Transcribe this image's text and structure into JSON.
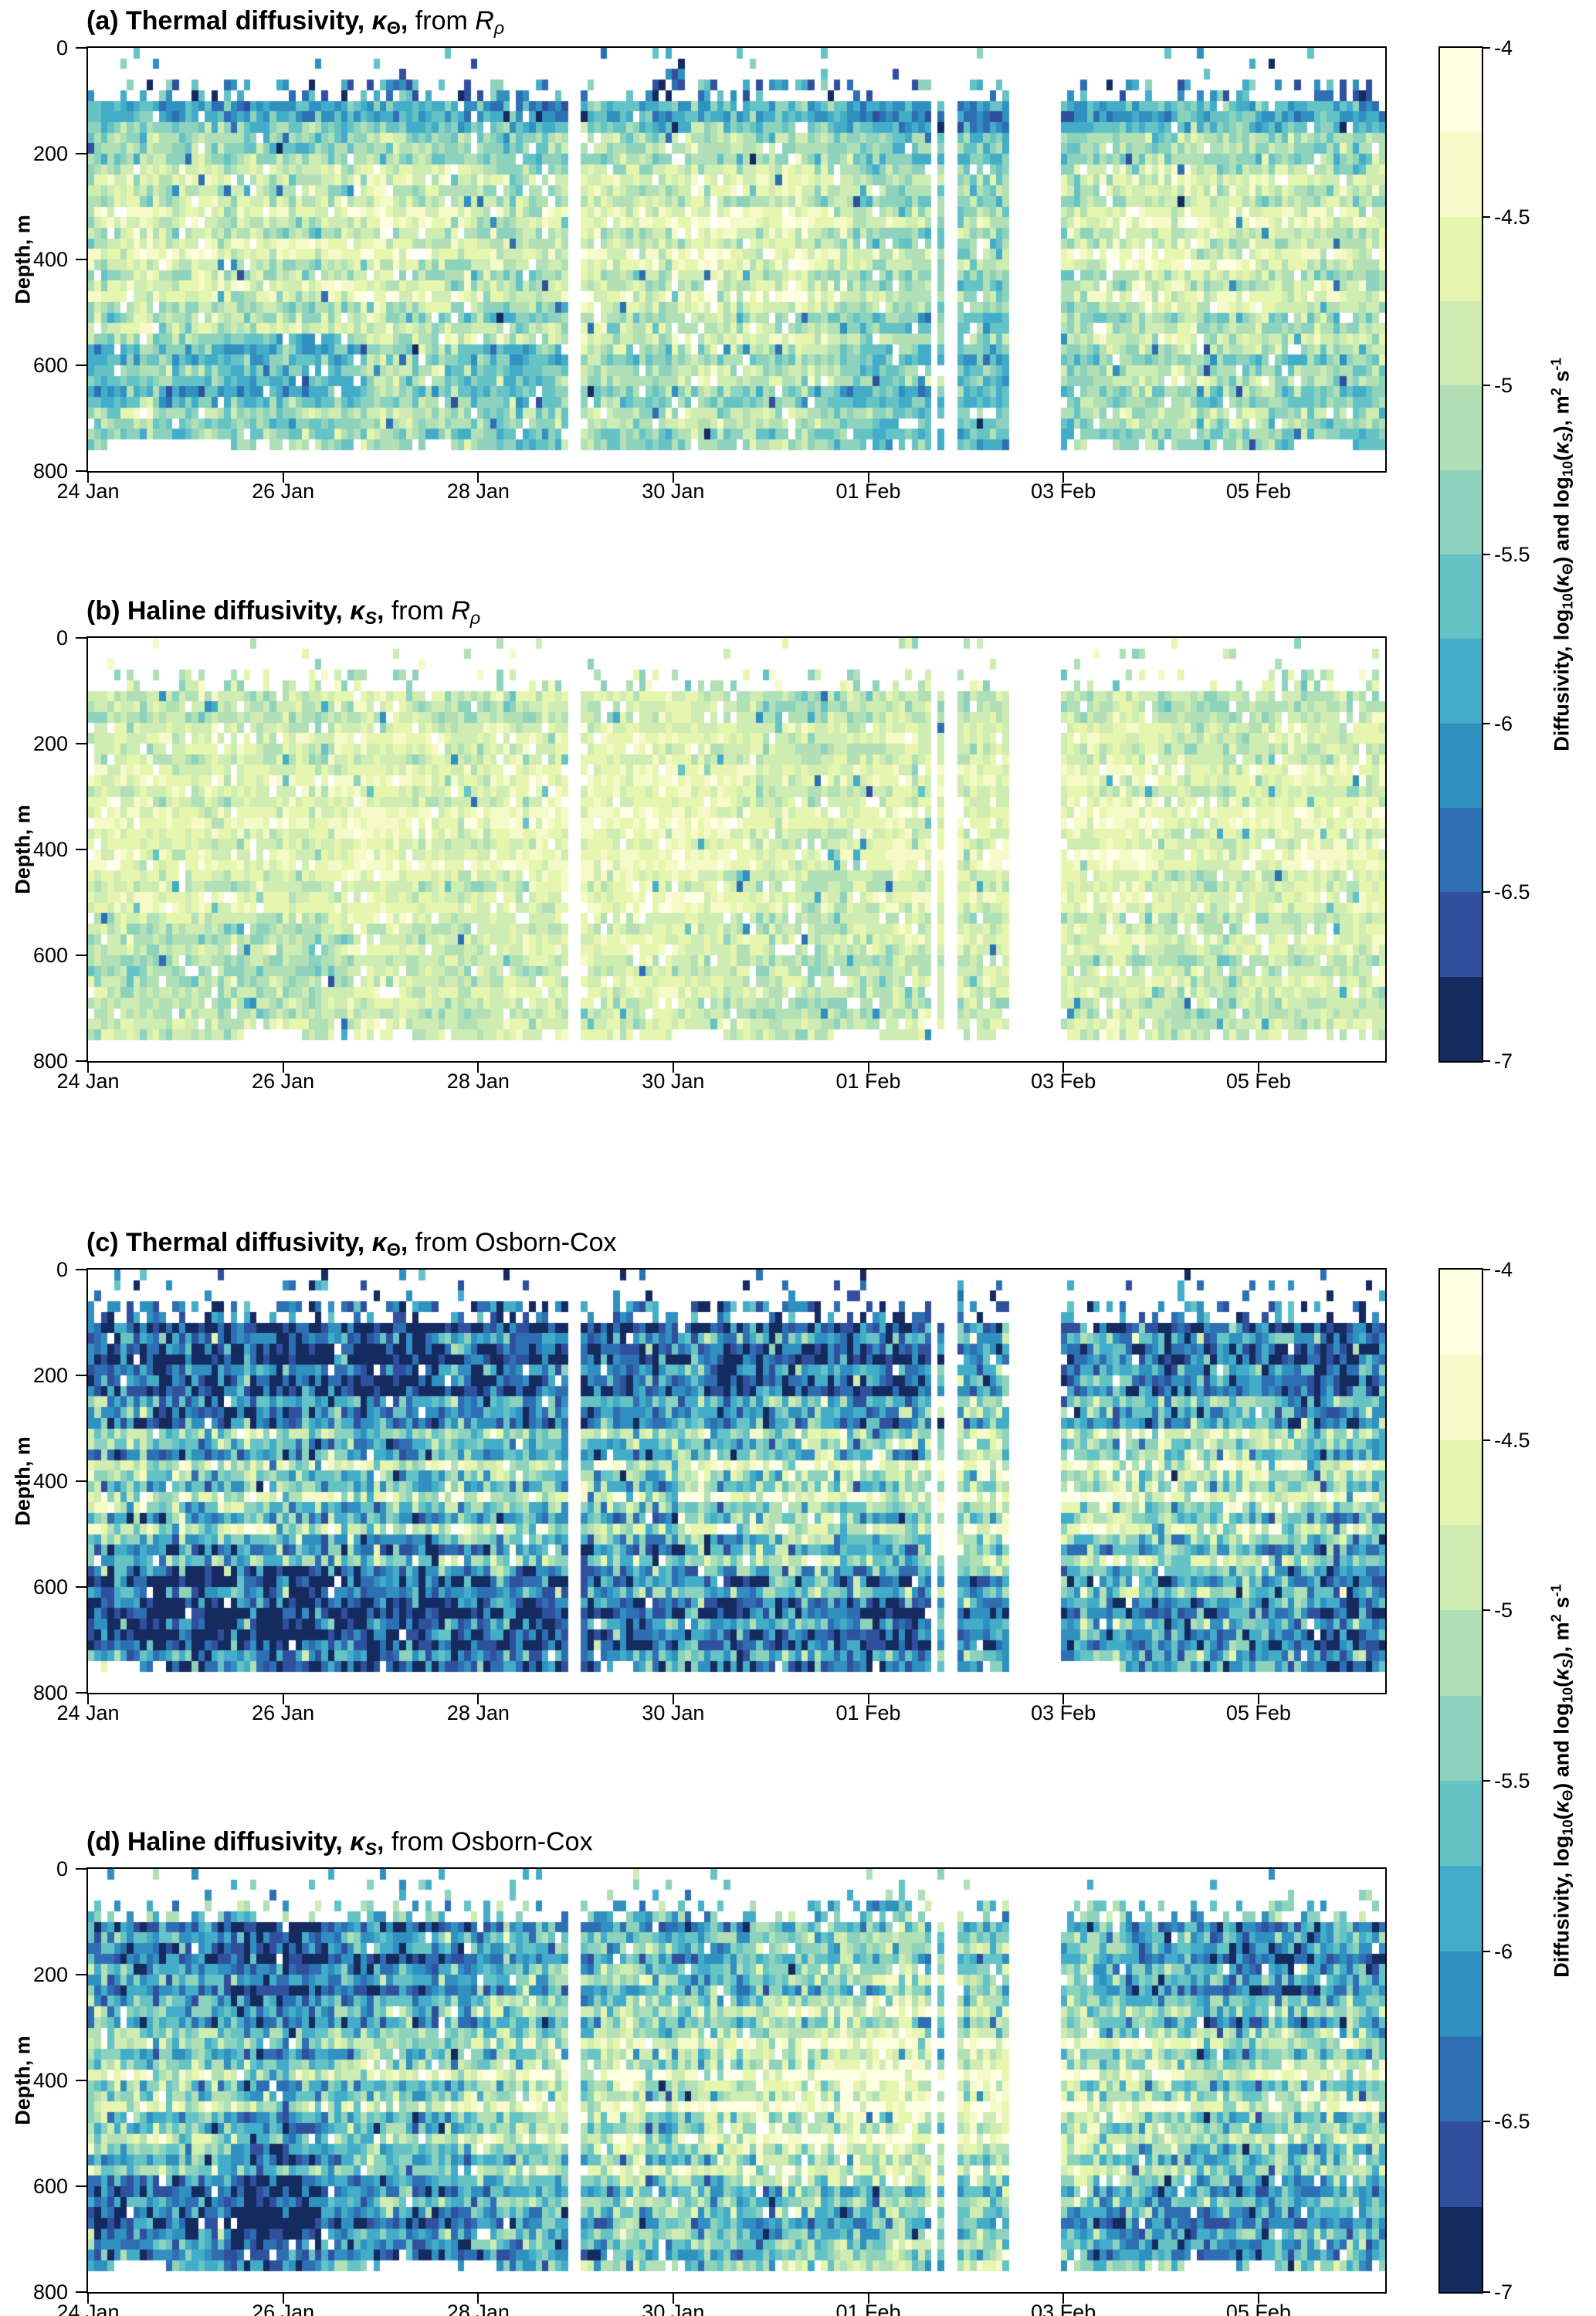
{
  "chart_data": {
    "type": "heatmap",
    "panel_layout": "4 stacked time-depth sections with shared discrete colorbar per pair",
    "x_axis": {
      "start_label": "24 Jan",
      "span_days": 13.3,
      "tick_step_days": 2,
      "ticks": [
        {
          "f": 0.0,
          "label": "24 Jan"
        },
        {
          "f": 0.1504,
          "label": "26 Jan"
        },
        {
          "f": 0.3008,
          "label": "28 Jan"
        },
        {
          "f": 0.4511,
          "label": "30 Jan"
        },
        {
          "f": 0.6015,
          "label": "01 Feb"
        },
        {
          "f": 0.7519,
          "label": "03 Feb"
        },
        {
          "f": 0.9023,
          "label": "05 Feb"
        }
      ]
    },
    "y_axis": {
      "label": "Depth, m",
      "min": 0,
      "max": 800,
      "ticks": [
        {
          "f": 0.0,
          "label": "0"
        },
        {
          "f": 0.25,
          "label": "200"
        },
        {
          "f": 0.5,
          "label": "400"
        },
        {
          "f": 0.75,
          "label": "600"
        },
        {
          "f": 1.0,
          "label": "800"
        }
      ]
    },
    "colorbar": {
      "vmin": -7,
      "vmax": -4,
      "band_step": 0.25,
      "colors": [
        "#ffffe4",
        "#f5fac8",
        "#e6f6ae",
        "#cfecb2",
        "#b1dfb6",
        "#8dd2bd",
        "#65c3c5",
        "#43adc9",
        "#3090c0",
        "#2e6fb3",
        "#30509e",
        "#152a5e"
      ],
      "ticks": [
        {
          "v": -4,
          "label": "-4"
        },
        {
          "v": -4.5,
          "label": "-4.5"
        },
        {
          "v": -5,
          "label": "-5"
        },
        {
          "v": -5.5,
          "label": "-5.5"
        },
        {
          "v": -6,
          "label": "-6"
        },
        {
          "v": -6.5,
          "label": "-6.5"
        },
        {
          "v": -7,
          "label": "-7"
        }
      ],
      "label_parts": [
        {
          "t": "Diffusivity,  log",
          "b": 1
        },
        {
          "t": "10",
          "b": 1,
          "sub": 1
        },
        {
          "t": "(",
          "b": 1
        },
        {
          "t": "κ",
          "b": 1,
          "i": 1
        },
        {
          "t": "Θ",
          "b": 1,
          "sub": 1
        },
        {
          "t": ")  and  log",
          "b": 1
        },
        {
          "t": "10",
          "b": 1,
          "sub": 1
        },
        {
          "t": "(",
          "b": 1
        },
        {
          "t": "κ",
          "b": 1,
          "i": 1
        },
        {
          "t": "S",
          "b": 1,
          "i": 1,
          "sub": 1
        },
        {
          "t": "),  m",
          "b": 1
        },
        {
          "t": "2",
          "b": 1,
          "sup": 1
        },
        {
          "t": " s",
          "b": 1
        },
        {
          "t": "-1",
          "b": 1,
          "sup": 1
        }
      ]
    },
    "missing_data_gaps_frac": [
      [
        0.37,
        0.379
      ],
      [
        0.65,
        0.657
      ],
      [
        0.662,
        0.669
      ],
      [
        0.708,
        0.7485
      ]
    ],
    "gen": {
      "cols": 200,
      "rows": 40,
      "depth_max": 800,
      "top1": 60,
      "top2": 100,
      "bottom_base": 752,
      "bottom_var": 14
    },
    "panels": [
      {
        "id": "a",
        "seed": 11,
        "title_parts": [
          {
            "t": "(a) Thermal diffusivity, ",
            "b": 1
          },
          {
            "t": "κ",
            "b": 1,
            "i": 1
          },
          {
            "t": "Θ",
            "b": 1,
            "sub": 1
          },
          {
            "t": ", ",
            "b": 1
          },
          {
            "t": "from "
          },
          {
            "t": "R",
            "i": 1
          },
          {
            "t": "ρ",
            "i": 1,
            "sub": 1
          }
        ],
        "depth_profile_log10": [
          [
            0,
            -5.5
          ],
          [
            80,
            -5.7
          ],
          [
            100,
            -5.95
          ],
          [
            130,
            -5.8
          ],
          [
            170,
            -5.45
          ],
          [
            220,
            -5.1
          ],
          [
            300,
            -4.85
          ],
          [
            400,
            -4.85
          ],
          [
            480,
            -5.0
          ],
          [
            560,
            -5.2
          ],
          [
            620,
            -5.35
          ],
          [
            700,
            -5.3
          ],
          [
            800,
            -5.35
          ]
        ],
        "sigma": 0.27,
        "band_amp": 0.16,
        "band_boost": 0.12,
        "band_center": 450,
        "band_width": 200,
        "lambda": 75,
        "col_var": 0.25,
        "miss_p": 0.05,
        "out_p": 0.02,
        "out_dv": -1.1,
        "sparse_p1": 0.05,
        "sparse_p2": 0.3,
        "sparse_base": -6.4,
        "sparse_spread": 1.6,
        "features": [
          {
            "c0": 0,
            "c1": 42,
            "d0": 540,
            "d1": 680,
            "dv": -0.45
          },
          {
            "c0": 55,
            "c1": 75,
            "d0": 560,
            "d1": 640,
            "dv": -0.3
          }
        ]
      },
      {
        "id": "b",
        "seed": 22,
        "title_parts": [
          {
            "t": "(b) Haline diffusivity, ",
            "b": 1
          },
          {
            "t": "κ",
            "b": 1,
            "i": 1
          },
          {
            "t": "S",
            "b": 1,
            "i": 1,
            "sub": 1
          },
          {
            "t": ", ",
            "b": 1
          },
          {
            "t": "from "
          },
          {
            "t": "R",
            "i": 1
          },
          {
            "t": "ρ",
            "i": 1,
            "sub": 1
          }
        ],
        "depth_profile_log10": [
          [
            0,
            -4.9
          ],
          [
            80,
            -5.0
          ],
          [
            100,
            -5.05
          ],
          [
            140,
            -4.95
          ],
          [
            200,
            -4.8
          ],
          [
            280,
            -4.7
          ],
          [
            360,
            -4.62
          ],
          [
            440,
            -4.68
          ],
          [
            520,
            -4.8
          ],
          [
            600,
            -4.9
          ],
          [
            700,
            -4.92
          ],
          [
            800,
            -4.95
          ]
        ],
        "sigma": 0.2,
        "band_amp": 0.1,
        "band_boost": 0.08,
        "band_center": 450,
        "band_width": 250,
        "lambda": 80,
        "col_var": 0.2,
        "miss_p": 0.06,
        "out_p": 0.02,
        "out_dv": -1.0,
        "sparse_p1": 0.05,
        "sparse_p2": 0.3,
        "sparse_base": -5.2,
        "sparse_spread": 1.2,
        "features": [
          {
            "c0": 0,
            "c1": 40,
            "d0": 560,
            "d1": 680,
            "dv": -0.25
          }
        ]
      },
      {
        "id": "c",
        "seed": 33,
        "title_parts": [
          {
            "t": "(c) Thermal diffusivity, ",
            "b": 1
          },
          {
            "t": "κ",
            "b": 1,
            "i": 1
          },
          {
            "t": "Θ",
            "b": 1,
            "sub": 1
          },
          {
            "t": ", ",
            "b": 1
          },
          {
            "t": "from Osborn-Cox"
          }
        ],
        "depth_profile_log10": [
          [
            0,
            -6.0
          ],
          [
            70,
            -6.2
          ],
          [
            110,
            -6.45
          ],
          [
            170,
            -6.5
          ],
          [
            230,
            -6.3
          ],
          [
            280,
            -5.9
          ],
          [
            330,
            -5.45
          ],
          [
            390,
            -5.1
          ],
          [
            440,
            -5.15
          ],
          [
            500,
            -5.45
          ],
          [
            560,
            -5.8
          ],
          [
            620,
            -6.2
          ],
          [
            680,
            -6.35
          ],
          [
            740,
            -6.2
          ],
          [
            800,
            -6.1
          ]
        ],
        "sigma": 0.48,
        "band_amp": 0.3,
        "band_boost": 0.3,
        "band_center": 430,
        "band_width": 160,
        "lambda": 60,
        "col_var": 0.45,
        "miss_p": 0.015,
        "out_p": 0.03,
        "out_dv": -0.9,
        "out_p2": 0.02,
        "out_dv2": 0.9,
        "sparse_p1": 0.1,
        "sparse_p2": 0.45,
        "sparse_base": -6.6,
        "sparse_spread": 1.4,
        "features": [
          {
            "c0": 0,
            "c1": 38,
            "d0": 560,
            "d1": 700,
            "dv": -0.5
          },
          {
            "c0": 86,
            "c1": 90,
            "d0": 300,
            "d1": 560,
            "dv": -0.7
          },
          {
            "c0": 120,
            "c1": 150,
            "d0": 620,
            "d1": 720,
            "dv": -0.35
          },
          {
            "c0": 40,
            "c1": 70,
            "d0": 600,
            "d1": 680,
            "dv": -0.3
          }
        ]
      },
      {
        "id": "d",
        "seed": 44,
        "title_parts": [
          {
            "t": "(d) Haline diffusivity, ",
            "b": 1
          },
          {
            "t": "κ",
            "b": 1,
            "i": 1
          },
          {
            "t": "S",
            "b": 1,
            "i": 1,
            "sub": 1
          },
          {
            "t": ", ",
            "b": 1
          },
          {
            "t": "from Osborn-Cox"
          }
        ],
        "depth_profile_log10": [
          [
            0,
            -5.5
          ],
          [
            70,
            -5.7
          ],
          [
            110,
            -5.95
          ],
          [
            170,
            -6.0
          ],
          [
            230,
            -5.85
          ],
          [
            280,
            -5.55
          ],
          [
            330,
            -5.25
          ],
          [
            390,
            -5.0
          ],
          [
            440,
            -5.05
          ],
          [
            500,
            -5.25
          ],
          [
            560,
            -5.45
          ],
          [
            620,
            -5.8
          ],
          [
            680,
            -5.95
          ],
          [
            740,
            -5.8
          ],
          [
            800,
            -5.75
          ]
        ],
        "sigma": 0.42,
        "band_amp": 0.25,
        "band_boost": 0.25,
        "band_center": 430,
        "band_width": 170,
        "lambda": 62,
        "col_var": 0.4,
        "miss_p": 0.02,
        "out_p": 0.03,
        "out_dv": -0.9,
        "out_p2": 0.012,
        "out_dv2": 0.8,
        "sparse_p1": 0.08,
        "sparse_p2": 0.4,
        "sparse_base": -5.9,
        "sparse_spread": 1.4,
        "features": [
          {
            "c0": 0,
            "c1": 35,
            "d0": 580,
            "d1": 700,
            "dv": -0.45
          },
          {
            "c0": 86,
            "c1": 90,
            "d0": 300,
            "d1": 560,
            "dv": -0.6
          },
          {
            "c0": 100,
            "c1": 135,
            "d0": 600,
            "d1": 700,
            "dv": -0.4
          },
          {
            "c0": 150,
            "c1": 170,
            "d0": 620,
            "d1": 710,
            "dv": -0.35
          }
        ]
      }
    ]
  }
}
